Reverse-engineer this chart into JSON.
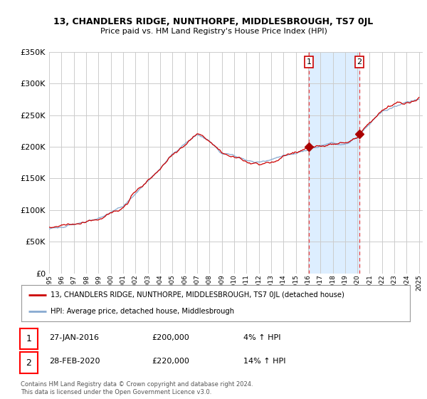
{
  "title": "13, CHANDLERS RIDGE, NUNTHORPE, MIDDLESBROUGH, TS7 0JL",
  "subtitle": "Price paid vs. HM Land Registry's House Price Index (HPI)",
  "legend_line1": "13, CHANDLERS RIDGE, NUNTHORPE, MIDDLESBROUGH, TS7 0JL (detached house)",
  "legend_line2": "HPI: Average price, detached house, Middlesbrough",
  "transaction1_date": "27-JAN-2016",
  "transaction1_price": "£200,000",
  "transaction1_hpi": "4% ↑ HPI",
  "transaction2_date": "28-FEB-2020",
  "transaction2_price": "£220,000",
  "transaction2_hpi": "14% ↑ HPI",
  "footnote": "Contains HM Land Registry data © Crown copyright and database right 2024.\nThis data is licensed under the Open Government Licence v3.0.",
  "red_line_color": "#cc0000",
  "blue_line_color": "#88aad0",
  "background_color": "#ffffff",
  "grid_color": "#cccccc",
  "shade_color": "#ddeeff",
  "vline_color": "#ee4444",
  "point_color": "#aa0000",
  "ylim": [
    0,
    350000
  ],
  "yticks": [
    0,
    50000,
    100000,
    150000,
    200000,
    250000,
    300000,
    350000
  ],
  "x_start_year": 1995,
  "x_end_year": 2025,
  "transaction1_year": 2016.07,
  "transaction2_year": 2020.16,
  "transaction1_value": 200000,
  "transaction2_value": 220000
}
